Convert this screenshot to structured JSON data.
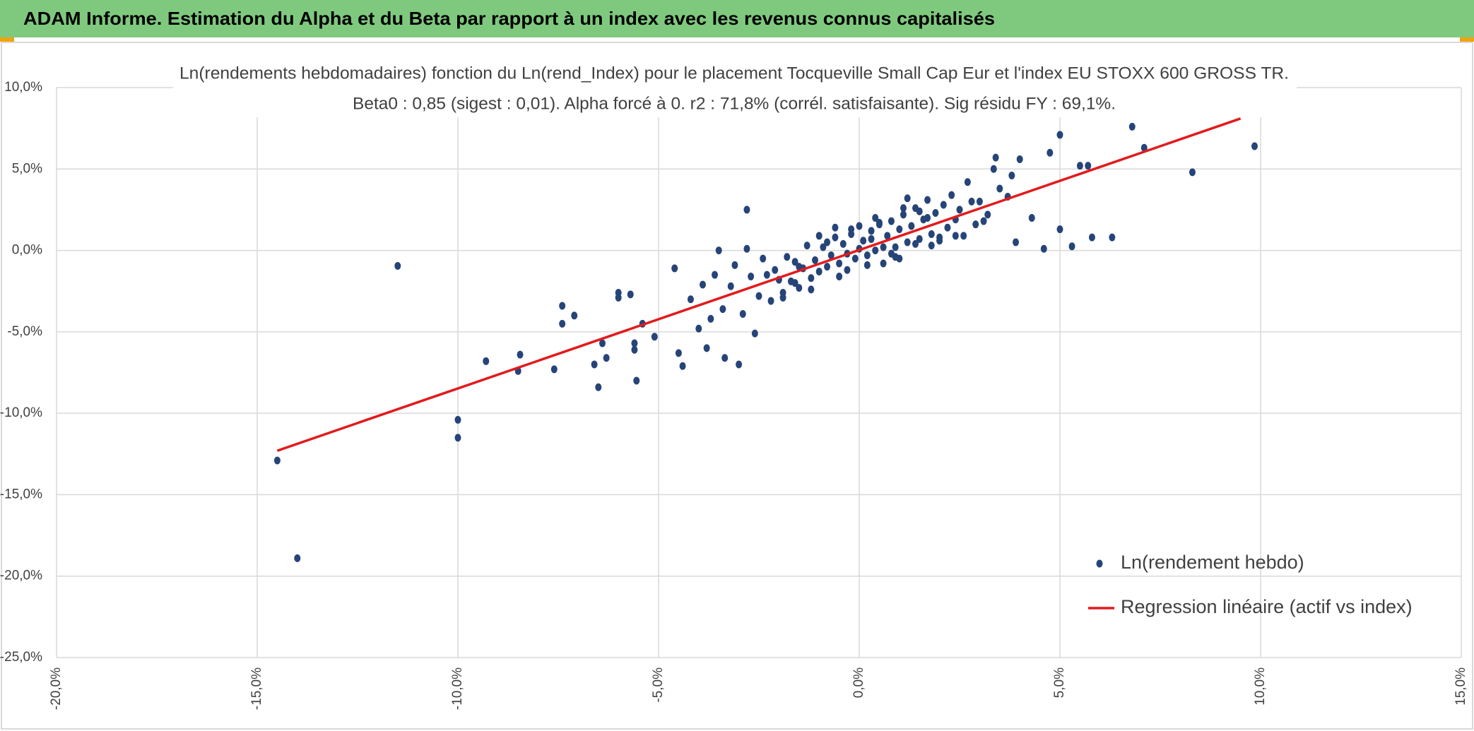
{
  "header": {
    "title": "ADAM Informe. Estimation du Alpha et du Beta par rapport à un index avec les revenus connus capitalisés"
  },
  "chart_data": {
    "type": "scatter",
    "title": "Ln(rendements hebdomadaires) fonction du Ln(rend_Index) pour le placement Tocqueville Small Cap Eur et l'index EU STOXX 600 GROSS TR.",
    "subtitle": "Beta0 : 0,85 (sigest : 0,01). Alpha forcé à 0. r2 : 71,8% (corrél. satisfaisante). Sig résidu FY : 69,1%.",
    "xlim": [
      -20,
      15
    ],
    "xticks": [
      {
        "value": -20,
        "label": "-20,0%"
      },
      {
        "value": -15,
        "label": "-15,0%"
      },
      {
        "value": -10,
        "label": "-10,0%"
      },
      {
        "value": -5,
        "label": "-5,0%"
      },
      {
        "value": 0,
        "label": "0,0%"
      },
      {
        "value": 5,
        "label": "5,0%"
      },
      {
        "value": 10,
        "label": "10,0%"
      },
      {
        "value": 15,
        "label": "15,0%"
      }
    ],
    "ylim": [
      -25,
      10
    ],
    "yticks": [
      {
        "value": -25,
        "label": "-25,0%"
      },
      {
        "value": -20,
        "label": "-20,0%"
      },
      {
        "value": -15,
        "label": "-15,0%"
      },
      {
        "value": -10,
        "label": "-10,0%"
      },
      {
        "value": -5,
        "label": "-5,0%"
      },
      {
        "value": 0,
        "label": "0,0%"
      },
      {
        "value": 5,
        "label": "5,0%"
      },
      {
        "value": 10,
        "label": "10,0%"
      }
    ],
    "grid": true,
    "legend": "lower right",
    "series": [
      {
        "name": "Ln(rendement hebdo)",
        "type": "scatter",
        "color": "#264478",
        "x": [
          -14.5,
          -14.0,
          -11.5,
          -10.0,
          -10.0,
          -9.3,
          -8.45,
          -8.5,
          -7.6,
          -7.4,
          -7.4,
          -7.1,
          -6.5,
          -6.6,
          -6.4,
          -6.3,
          -6.0,
          -6.0,
          -5.7,
          -5.55,
          -5.6,
          -5.6,
          -5.4,
          -5.1,
          -4.6,
          -4.5,
          -4.4,
          -2.8,
          -3.5,
          -3.0,
          -3.35,
          -3.8,
          -2.6,
          9.85,
          8.3,
          7.1,
          6.8,
          6.3,
          5.8,
          5.7,
          5.5,
          5.3,
          5.0,
          4.75,
          4.6,
          5.0,
          4.0,
          3.9,
          3.35,
          2.8,
          3.4,
          3.8,
          4.3,
          -4.2,
          -4.0,
          -3.9,
          -3.7,
          -3.6,
          -3.4,
          -3.2,
          -3.1,
          -2.9,
          -2.7,
          -2.5,
          -2.4,
          -2.2,
          -2.1,
          -2.0,
          -1.9,
          -1.8,
          -1.7,
          -1.6,
          -1.5,
          -1.4,
          -1.3,
          -1.2,
          -1.1,
          -1.0,
          -0.9,
          -0.8,
          -0.7,
          -0.6,
          -0.5,
          -0.4,
          -0.3,
          -0.2,
          -0.1,
          0.0,
          0.1,
          0.2,
          0.3,
          0.4,
          0.5,
          0.6,
          0.7,
          0.8,
          0.9,
          1.0,
          1.1,
          1.2,
          1.3,
          1.4,
          1.5,
          1.6,
          1.7,
          1.8,
          1.9,
          2.0,
          2.1,
          2.2,
          2.3,
          2.4,
          2.5,
          2.6,
          2.7,
          2.9,
          3.0,
          3.2,
          3.5,
          3.7,
          -2.3,
          -1.9,
          -1.5,
          -1.2,
          -0.8,
          -0.5,
          -0.2,
          0.2,
          0.5,
          0.8,
          1.1,
          1.4,
          1.7,
          2.0,
          -1.0,
          -0.6,
          0.0,
          0.6,
          1.2,
          1.8,
          -0.3,
          0.3,
          0.9,
          1.5,
          -1.6,
          2.4,
          3.1,
          -2.8,
          0.4,
          1.0
        ],
        "values": [
          -12.9,
          -18.9,
          -0.95,
          -10.4,
          -11.5,
          -6.8,
          -6.4,
          -7.4,
          -7.3,
          -3.4,
          -4.5,
          -4.0,
          -8.4,
          -7.0,
          -5.7,
          -6.6,
          -2.6,
          -2.9,
          -2.7,
          -8.0,
          -5.7,
          -6.1,
          -4.5,
          -5.3,
          -1.1,
          -6.3,
          -7.1,
          2.5,
          0.0,
          -7.0,
          -6.6,
          -6.0,
          -5.1,
          6.4,
          4.8,
          6.3,
          7.6,
          0.8,
          0.8,
          5.2,
          5.2,
          0.25,
          7.1,
          6.0,
          0.1,
          1.3,
          5.6,
          0.5,
          5.0,
          3.0,
          5.7,
          4.6,
          2.0,
          -3.0,
          -4.8,
          -2.1,
          -4.2,
          -1.5,
          -3.6,
          -2.2,
          -0.9,
          -3.9,
          -1.6,
          -2.8,
          -0.5,
          -3.1,
          -1.2,
          -1.8,
          -2.6,
          -0.4,
          -1.9,
          -0.7,
          -2.3,
          -1.1,
          0.3,
          -1.7,
          -0.6,
          -1.3,
          0.2,
          -1.0,
          -0.3,
          0.8,
          -0.8,
          0.4,
          -0.2,
          1.0,
          -0.5,
          0.1,
          0.6,
          -0.3,
          1.2,
          0.0,
          1.6,
          0.2,
          0.9,
          1.8,
          -0.4,
          1.3,
          2.2,
          0.5,
          1.5,
          2.6,
          0.7,
          1.9,
          3.1,
          1.0,
          2.3,
          0.6,
          2.8,
          1.4,
          3.4,
          1.9,
          2.5,
          0.9,
          4.2,
          1.6,
          3.0,
          2.2,
          3.8,
          3.3,
          -1.5,
          -2.9,
          -1.0,
          -2.4,
          0.5,
          -1.6,
          1.3,
          -0.9,
          1.7,
          -0.2,
          2.6,
          0.4,
          2.0,
          0.8,
          0.9,
          1.4,
          1.5,
          -0.8,
          3.2,
          0.3,
          -1.2,
          0.7,
          0.2,
          2.4,
          -2.0,
          0.9,
          1.8,
          0.1,
          2.0,
          -0.5
        ]
      },
      {
        "name": "Regression linéaire (actif vs index)",
        "type": "line",
        "color": "#e31a1c",
        "x": [
          -14.5,
          9.5
        ],
        "values": [
          -12.3,
          8.1
        ]
      }
    ]
  }
}
